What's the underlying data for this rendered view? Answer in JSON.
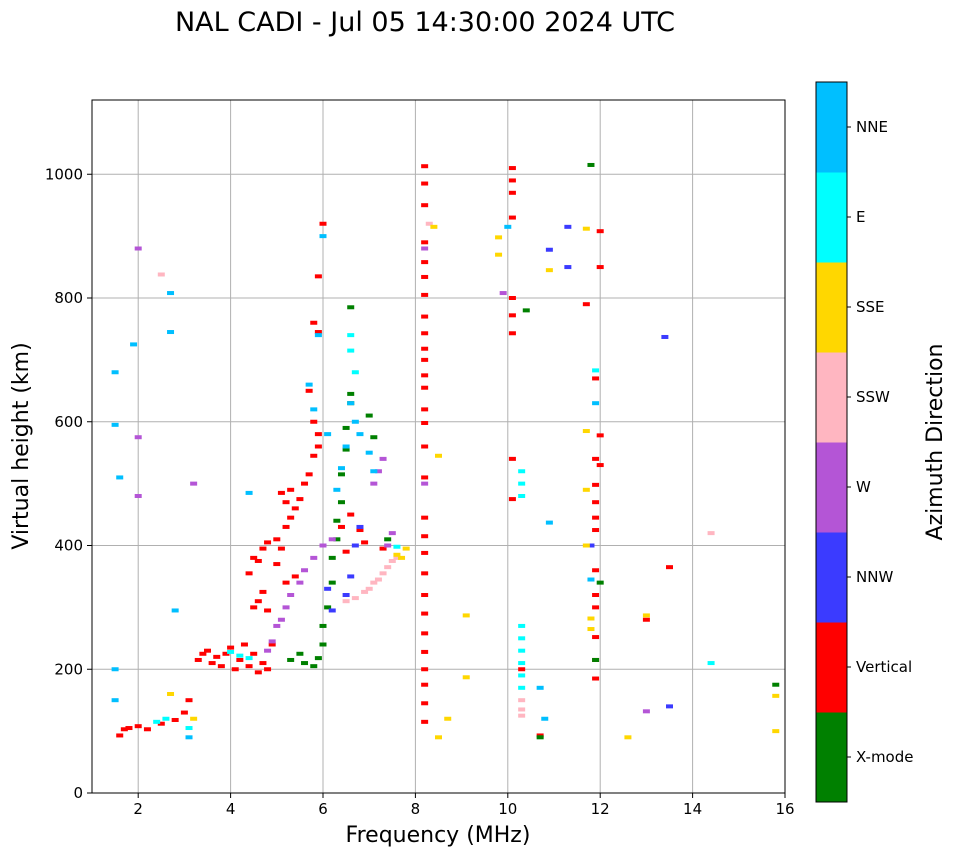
{
  "chart_data": {
    "type": "scatter",
    "title": "NAL CADI - Jul 05 14:30:00 2024 UTC",
    "xlabel": "Frequency (MHz)",
    "ylabel": "Virtual height (km)",
    "xlim": [
      1,
      16
    ],
    "ylim": [
      0,
      1120
    ],
    "xticks": [
      2,
      4,
      6,
      8,
      10,
      12,
      14,
      16
    ],
    "yticks": [
      0,
      200,
      400,
      600,
      800,
      1000
    ],
    "grid": true,
    "colorbar": {
      "label": "Azimuth Direction",
      "categories": [
        {
          "name": "X-mode",
          "color": "#008000"
        },
        {
          "name": "Vertical",
          "color": "#ff0000"
        },
        {
          "name": "NNW",
          "color": "#3b3bff"
        },
        {
          "name": "W",
          "color": "#b455d6"
        },
        {
          "name": "SSW",
          "color": "#ffb6c1"
        },
        {
          "name": "SSE",
          "color": "#ffd700"
        },
        {
          "name": "E",
          "color": "#00ffff"
        },
        {
          "name": "NNE",
          "color": "#00bfff"
        }
      ]
    },
    "series": [
      {
        "name": "Vertical",
        "points": [
          [
            1.6,
            93
          ],
          [
            1.7,
            103
          ],
          [
            1.8,
            105
          ],
          [
            2.0,
            108
          ],
          [
            2.2,
            103
          ],
          [
            2.5,
            112
          ],
          [
            2.8,
            118
          ],
          [
            3.0,
            130
          ],
          [
            3.1,
            150
          ],
          [
            3.3,
            215
          ],
          [
            3.4,
            225
          ],
          [
            3.5,
            230
          ],
          [
            3.6,
            210
          ],
          [
            3.7,
            220
          ],
          [
            3.8,
            205
          ],
          [
            3.9,
            225
          ],
          [
            4.0,
            235
          ],
          [
            4.1,
            200
          ],
          [
            4.2,
            215
          ],
          [
            4.3,
            240
          ],
          [
            4.4,
            205
          ],
          [
            4.5,
            225
          ],
          [
            4.6,
            195
          ],
          [
            4.7,
            210
          ],
          [
            4.8,
            200
          ],
          [
            4.9,
            240
          ],
          [
            4.5,
            300
          ],
          [
            4.6,
            310
          ],
          [
            4.7,
            325
          ],
          [
            4.8,
            295
          ],
          [
            4.4,
            355
          ],
          [
            4.5,
            380
          ],
          [
            4.6,
            375
          ],
          [
            4.7,
            395
          ],
          [
            4.8,
            405
          ],
          [
            5.0,
            410
          ],
          [
            5.1,
            395
          ],
          [
            5.2,
            430
          ],
          [
            5.3,
            445
          ],
          [
            5.4,
            460
          ],
          [
            5.5,
            475
          ],
          [
            5.1,
            485
          ],
          [
            5.2,
            470
          ],
          [
            5.3,
            490
          ],
          [
            5.6,
            500
          ],
          [
            5.7,
            515
          ],
          [
            5.8,
            545
          ],
          [
            5.9,
            560
          ],
          [
            5.0,
            370
          ],
          [
            5.2,
            340
          ],
          [
            5.4,
            350
          ],
          [
            5.8,
            760
          ],
          [
            5.9,
            745
          ],
          [
            6.0,
            920
          ],
          [
            5.9,
            835
          ],
          [
            5.7,
            650
          ],
          [
            5.8,
            600
          ],
          [
            5.9,
            580
          ],
          [
            6.4,
            430
          ],
          [
            6.6,
            450
          ],
          [
            6.8,
            425
          ],
          [
            6.9,
            405
          ],
          [
            6.5,
            390
          ],
          [
            7.3,
            395
          ],
          [
            8.2,
            1013
          ],
          [
            8.2,
            985
          ],
          [
            8.2,
            950
          ],
          [
            8.2,
            890
          ],
          [
            8.2,
            858
          ],
          [
            8.2,
            834
          ],
          [
            8.2,
            805
          ],
          [
            8.2,
            770
          ],
          [
            8.2,
            743
          ],
          [
            8.2,
            718
          ],
          [
            8.2,
            700
          ],
          [
            8.2,
            675
          ],
          [
            8.2,
            655
          ],
          [
            8.2,
            620
          ],
          [
            8.2,
            598
          ],
          [
            8.2,
            560
          ],
          [
            8.2,
            510
          ],
          [
            8.2,
            445
          ],
          [
            8.2,
            415
          ],
          [
            8.2,
            388
          ],
          [
            8.2,
            355
          ],
          [
            8.2,
            320
          ],
          [
            8.2,
            290
          ],
          [
            8.2,
            258
          ],
          [
            8.2,
            228
          ],
          [
            8.2,
            200
          ],
          [
            8.2,
            175
          ],
          [
            8.2,
            145
          ],
          [
            8.2,
            115
          ],
          [
            10.1,
            1010
          ],
          [
            10.1,
            990
          ],
          [
            10.1,
            970
          ],
          [
            10.1,
            930
          ],
          [
            10.1,
            800
          ],
          [
            10.1,
            772
          ],
          [
            10.1,
            743
          ],
          [
            10.1,
            540
          ],
          [
            10.1,
            475
          ],
          [
            10.3,
            200
          ],
          [
            10.7,
            93
          ],
          [
            11.7,
            790
          ],
          [
            11.9,
            670
          ],
          [
            11.9,
            540
          ],
          [
            11.9,
            498
          ],
          [
            11.9,
            470
          ],
          [
            11.9,
            445
          ],
          [
            11.9,
            425
          ],
          [
            11.9,
            360
          ],
          [
            11.9,
            320
          ],
          [
            11.9,
            300
          ],
          [
            11.9,
            252
          ],
          [
            11.9,
            215
          ],
          [
            11.9,
            185
          ],
          [
            12.0,
            908
          ],
          [
            12.0,
            850
          ],
          [
            12.0,
            578
          ],
          [
            12.0,
            530
          ],
          [
            13.0,
            280
          ],
          [
            13.5,
            365
          ]
        ]
      },
      {
        "name": "X-mode",
        "points": [
          [
            5.3,
            215
          ],
          [
            5.5,
            225
          ],
          [
            5.6,
            210
          ],
          [
            5.8,
            205
          ],
          [
            5.9,
            218
          ],
          [
            6.0,
            240
          ],
          [
            6.0,
            270
          ],
          [
            6.1,
            300
          ],
          [
            6.2,
            340
          ],
          [
            6.2,
            380
          ],
          [
            6.3,
            410
          ],
          [
            6.3,
            440
          ],
          [
            6.4,
            470
          ],
          [
            6.4,
            515
          ],
          [
            6.5,
            555
          ],
          [
            6.5,
            590
          ],
          [
            6.6,
            630
          ],
          [
            6.6,
            645
          ],
          [
            7.0,
            610
          ],
          [
            7.1,
            575
          ],
          [
            6.6,
            785
          ],
          [
            7.4,
            410
          ],
          [
            10.4,
            780
          ],
          [
            10.7,
            90
          ],
          [
            11.8,
            1015
          ],
          [
            11.9,
            215
          ],
          [
            12.0,
            340
          ],
          [
            15.8,
            175
          ]
        ]
      },
      {
        "name": "NNW",
        "points": [
          [
            6.5,
            320
          ],
          [
            6.6,
            350
          ],
          [
            6.7,
            400
          ],
          [
            6.8,
            430
          ],
          [
            6.1,
            330
          ],
          [
            6.2,
            295
          ],
          [
            10.9,
            878
          ],
          [
            11.3,
            850
          ],
          [
            11.3,
            915
          ],
          [
            13.4,
            737
          ],
          [
            13.5,
            140
          ],
          [
            11.8,
            400
          ]
        ]
      },
      {
        "name": "W",
        "points": [
          [
            2.0,
            880
          ],
          [
            2.0,
            575
          ],
          [
            2.0,
            480
          ],
          [
            3.2,
            500
          ],
          [
            4.8,
            230
          ],
          [
            4.9,
            245
          ],
          [
            5.0,
            270
          ],
          [
            5.1,
            280
          ],
          [
            5.2,
            300
          ],
          [
            5.3,
            320
          ],
          [
            5.5,
            340
          ],
          [
            5.6,
            360
          ],
          [
            5.8,
            380
          ],
          [
            6.0,
            400
          ],
          [
            6.2,
            410
          ],
          [
            7.1,
            500
          ],
          [
            7.2,
            520
          ],
          [
            7.3,
            540
          ],
          [
            7.4,
            400
          ],
          [
            7.5,
            420
          ],
          [
            8.2,
            880
          ],
          [
            8.2,
            500
          ],
          [
            13.0,
            132
          ],
          [
            9.9,
            808
          ]
        ]
      },
      {
        "name": "SSW",
        "points": [
          [
            2.5,
            838
          ],
          [
            6.5,
            310
          ],
          [
            6.7,
            315
          ],
          [
            6.9,
            325
          ],
          [
            7.0,
            330
          ],
          [
            7.1,
            340
          ],
          [
            7.2,
            345
          ],
          [
            7.3,
            355
          ],
          [
            7.4,
            365
          ],
          [
            7.5,
            375
          ],
          [
            7.6,
            380
          ],
          [
            8.3,
            920
          ],
          [
            10.3,
            125
          ],
          [
            10.3,
            135
          ],
          [
            10.3,
            150
          ],
          [
            14.4,
            420
          ]
        ]
      },
      {
        "name": "SSE",
        "points": [
          [
            2.7,
            160
          ],
          [
            3.2,
            120
          ],
          [
            7.6,
            385
          ],
          [
            7.7,
            380
          ],
          [
            7.8,
            395
          ],
          [
            8.4,
            915
          ],
          [
            8.5,
            545
          ],
          [
            8.5,
            90
          ],
          [
            8.7,
            120
          ],
          [
            9.1,
            287
          ],
          [
            9.1,
            187
          ],
          [
            9.8,
            898
          ],
          [
            9.8,
            870
          ],
          [
            10.9,
            845
          ],
          [
            11.7,
            912
          ],
          [
            11.7,
            585
          ],
          [
            11.7,
            490
          ],
          [
            11.7,
            400
          ],
          [
            11.8,
            282
          ],
          [
            11.8,
            265
          ],
          [
            12.6,
            90
          ],
          [
            13.0,
            287
          ],
          [
            15.8,
            157
          ],
          [
            15.8,
            100
          ]
        ]
      },
      {
        "name": "E",
        "points": [
          [
            2.4,
            115
          ],
          [
            2.6,
            120
          ],
          [
            3.1,
            105
          ],
          [
            4.0,
            228
          ],
          [
            4.2,
            222
          ],
          [
            4.4,
            218
          ],
          [
            6.6,
            740
          ],
          [
            6.6,
            715
          ],
          [
            6.7,
            680
          ],
          [
            7.6,
            398
          ],
          [
            10.3,
            520
          ],
          [
            10.3,
            500
          ],
          [
            10.3,
            480
          ],
          [
            10.3,
            270
          ],
          [
            10.3,
            250
          ],
          [
            10.3,
            230
          ],
          [
            10.3,
            210
          ],
          [
            10.3,
            190
          ],
          [
            10.3,
            170
          ],
          [
            11.9,
            683
          ],
          [
            14.4,
            210
          ]
        ]
      },
      {
        "name": "NNE",
        "points": [
          [
            1.5,
            680
          ],
          [
            1.5,
            595
          ],
          [
            1.5,
            200
          ],
          [
            1.5,
            150
          ],
          [
            1.6,
            510
          ],
          [
            1.9,
            725
          ],
          [
            2.7,
            808
          ],
          [
            2.7,
            745
          ],
          [
            2.8,
            295
          ],
          [
            3.1,
            90
          ],
          [
            4.4,
            485
          ],
          [
            5.7,
            660
          ],
          [
            5.8,
            620
          ],
          [
            5.9,
            740
          ],
          [
            6.0,
            900
          ],
          [
            6.1,
            580
          ],
          [
            6.3,
            490
          ],
          [
            6.4,
            525
          ],
          [
            6.5,
            560
          ],
          [
            6.6,
            630
          ],
          [
            6.7,
            600
          ],
          [
            6.8,
            580
          ],
          [
            7.0,
            550
          ],
          [
            7.1,
            520
          ],
          [
            10.0,
            915
          ],
          [
            10.7,
            170
          ],
          [
            10.8,
            120
          ],
          [
            10.9,
            437
          ],
          [
            11.9,
            630
          ],
          [
            11.8,
            345
          ]
        ]
      }
    ]
  }
}
